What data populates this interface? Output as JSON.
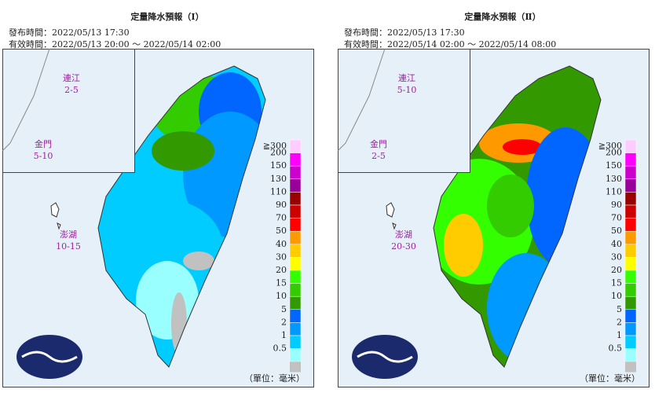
{
  "panels": [
    {
      "title": "定量降水預報（Ⅰ）",
      "issued": "發布時間：2022/05/13 17:30",
      "valid": "有效時間：2022/05/13 20:00 ～ 2022/05/14 02:00",
      "islands": [
        {
          "name": "連江",
          "value": "2-5"
        },
        {
          "name": "金門",
          "value": "5-10"
        },
        {
          "name": "澎湖",
          "value": "10-15"
        }
      ]
    },
    {
      "title": "定量降水預報（Ⅱ）",
      "issued": "發布時間：2022/05/13 17:30",
      "valid": "有效時間：2022/05/14 02:00 ～ 2022/05/14 08:00",
      "islands": [
        {
          "name": "連江",
          "value": "5-10"
        },
        {
          "name": "金門",
          "value": "2-5"
        },
        {
          "name": "澎湖",
          "value": "20-30"
        }
      ]
    }
  ],
  "legend": {
    "labels": [
      "≧300",
      "200",
      "150",
      "130",
      "110",
      "90",
      "70",
      "50",
      "40",
      "30",
      "20",
      "15",
      "10",
      "5",
      "2",
      "1",
      "0.5"
    ],
    "colors": [
      "#ffccff",
      "#ff00ff",
      "#cc00cc",
      "#990099",
      "#990000",
      "#cc0000",
      "#ff0000",
      "#ff9900",
      "#ffcc00",
      "#ffff00",
      "#33ff00",
      "#33cc00",
      "#339900",
      "#0066ff",
      "#0099ff",
      "#00ccff",
      "#99ffff"
    ],
    "last_color": "#c1c1c1"
  },
  "unit": "（單位：毫米）"
}
